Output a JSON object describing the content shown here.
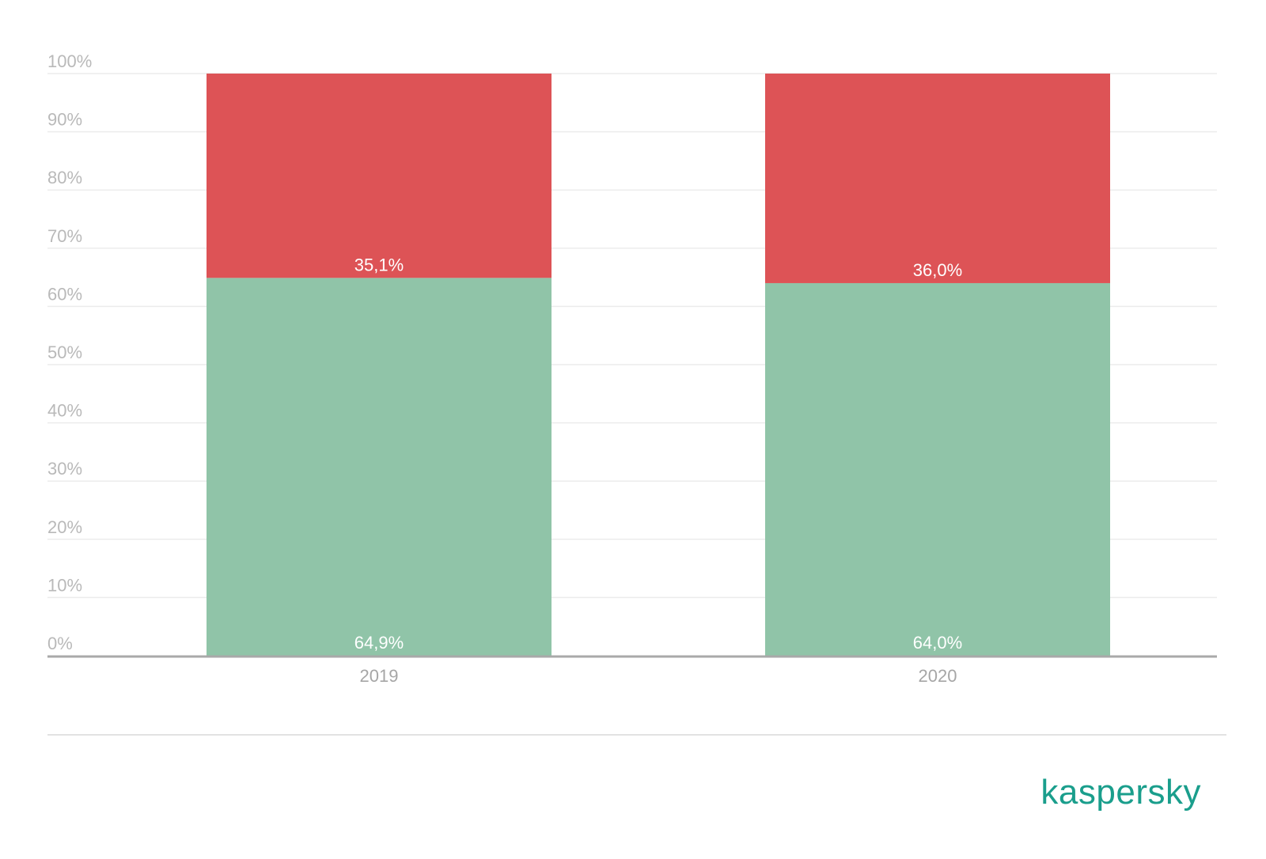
{
  "chart_data": {
    "type": "bar",
    "stacked": true,
    "categories": [
      "2019",
      "2020"
    ],
    "series": [
      {
        "color": "#90c4a8",
        "values": [
          64.9,
          64.0
        ],
        "labels": [
          "64,9%",
          "64,0%"
        ]
      },
      {
        "color": "#dd5356",
        "values": [
          35.1,
          36.0
        ],
        "labels": [
          "35,1%",
          "36,0%"
        ]
      }
    ],
    "yticks": [
      {
        "value": 0,
        "label": "0%"
      },
      {
        "value": 10,
        "label": "10%"
      },
      {
        "value": 20,
        "label": "20%"
      },
      {
        "value": 30,
        "label": "30%"
      },
      {
        "value": 40,
        "label": "40%"
      },
      {
        "value": 50,
        "label": "50%"
      },
      {
        "value": 60,
        "label": "60%"
      },
      {
        "value": 70,
        "label": "70%"
      },
      {
        "value": 80,
        "label": "80%"
      },
      {
        "value": 90,
        "label": "90%"
      },
      {
        "value": 100,
        "label": "100%"
      }
    ],
    "ylim": [
      0,
      100
    ],
    "grid": true,
    "title": "",
    "xlabel": "",
    "ylabel": ""
  },
  "branding": {
    "logo_text": "kaspersky",
    "color": "#1a9e8c"
  }
}
